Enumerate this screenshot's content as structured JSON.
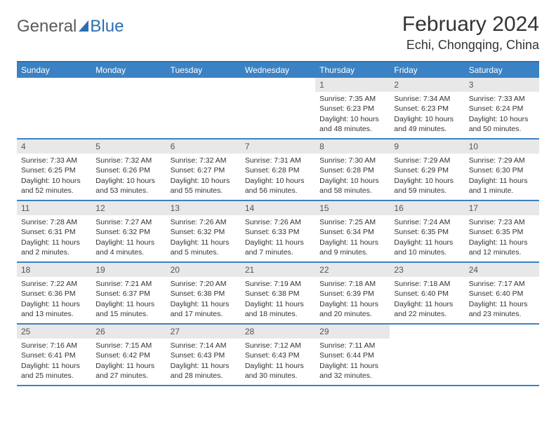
{
  "brand": {
    "general": "General",
    "blue": "Blue"
  },
  "title": "February 2024",
  "location": "Echi, Chongqing, China",
  "day_names": [
    "Sunday",
    "Monday",
    "Tuesday",
    "Wednesday",
    "Thursday",
    "Friday",
    "Saturday"
  ],
  "colors": {
    "header_bg": "#3b82c4",
    "header_text": "#ffffff",
    "row_border": "#3b82c4",
    "daynum_bg": "#e8e8e8",
    "text": "#333333",
    "brand_gray": "#5a5a5a",
    "brand_blue": "#2c6fb2"
  },
  "typography": {
    "title_fontsize": 30,
    "location_fontsize": 18,
    "dayname_fontsize": 12,
    "cell_fontsize": 10.5
  },
  "weeks": [
    [
      {
        "n": "",
        "sr": "",
        "ss": "",
        "dl": ""
      },
      {
        "n": "",
        "sr": "",
        "ss": "",
        "dl": ""
      },
      {
        "n": "",
        "sr": "",
        "ss": "",
        "dl": ""
      },
      {
        "n": "",
        "sr": "",
        "ss": "",
        "dl": ""
      },
      {
        "n": "1",
        "sr": "Sunrise: 7:35 AM",
        "ss": "Sunset: 6:23 PM",
        "dl": "Daylight: 10 hours and 48 minutes."
      },
      {
        "n": "2",
        "sr": "Sunrise: 7:34 AM",
        "ss": "Sunset: 6:23 PM",
        "dl": "Daylight: 10 hours and 49 minutes."
      },
      {
        "n": "3",
        "sr": "Sunrise: 7:33 AM",
        "ss": "Sunset: 6:24 PM",
        "dl": "Daylight: 10 hours and 50 minutes."
      }
    ],
    [
      {
        "n": "4",
        "sr": "Sunrise: 7:33 AM",
        "ss": "Sunset: 6:25 PM",
        "dl": "Daylight: 10 hours and 52 minutes."
      },
      {
        "n": "5",
        "sr": "Sunrise: 7:32 AM",
        "ss": "Sunset: 6:26 PM",
        "dl": "Daylight: 10 hours and 53 minutes."
      },
      {
        "n": "6",
        "sr": "Sunrise: 7:32 AM",
        "ss": "Sunset: 6:27 PM",
        "dl": "Daylight: 10 hours and 55 minutes."
      },
      {
        "n": "7",
        "sr": "Sunrise: 7:31 AM",
        "ss": "Sunset: 6:28 PM",
        "dl": "Daylight: 10 hours and 56 minutes."
      },
      {
        "n": "8",
        "sr": "Sunrise: 7:30 AM",
        "ss": "Sunset: 6:28 PM",
        "dl": "Daylight: 10 hours and 58 minutes."
      },
      {
        "n": "9",
        "sr": "Sunrise: 7:29 AM",
        "ss": "Sunset: 6:29 PM",
        "dl": "Daylight: 10 hours and 59 minutes."
      },
      {
        "n": "10",
        "sr": "Sunrise: 7:29 AM",
        "ss": "Sunset: 6:30 PM",
        "dl": "Daylight: 11 hours and 1 minute."
      }
    ],
    [
      {
        "n": "11",
        "sr": "Sunrise: 7:28 AM",
        "ss": "Sunset: 6:31 PM",
        "dl": "Daylight: 11 hours and 2 minutes."
      },
      {
        "n": "12",
        "sr": "Sunrise: 7:27 AM",
        "ss": "Sunset: 6:32 PM",
        "dl": "Daylight: 11 hours and 4 minutes."
      },
      {
        "n": "13",
        "sr": "Sunrise: 7:26 AM",
        "ss": "Sunset: 6:32 PM",
        "dl": "Daylight: 11 hours and 5 minutes."
      },
      {
        "n": "14",
        "sr": "Sunrise: 7:26 AM",
        "ss": "Sunset: 6:33 PM",
        "dl": "Daylight: 11 hours and 7 minutes."
      },
      {
        "n": "15",
        "sr": "Sunrise: 7:25 AM",
        "ss": "Sunset: 6:34 PM",
        "dl": "Daylight: 11 hours and 9 minutes."
      },
      {
        "n": "16",
        "sr": "Sunrise: 7:24 AM",
        "ss": "Sunset: 6:35 PM",
        "dl": "Daylight: 11 hours and 10 minutes."
      },
      {
        "n": "17",
        "sr": "Sunrise: 7:23 AM",
        "ss": "Sunset: 6:35 PM",
        "dl": "Daylight: 11 hours and 12 minutes."
      }
    ],
    [
      {
        "n": "18",
        "sr": "Sunrise: 7:22 AM",
        "ss": "Sunset: 6:36 PM",
        "dl": "Daylight: 11 hours and 13 minutes."
      },
      {
        "n": "19",
        "sr": "Sunrise: 7:21 AM",
        "ss": "Sunset: 6:37 PM",
        "dl": "Daylight: 11 hours and 15 minutes."
      },
      {
        "n": "20",
        "sr": "Sunrise: 7:20 AM",
        "ss": "Sunset: 6:38 PM",
        "dl": "Daylight: 11 hours and 17 minutes."
      },
      {
        "n": "21",
        "sr": "Sunrise: 7:19 AM",
        "ss": "Sunset: 6:38 PM",
        "dl": "Daylight: 11 hours and 18 minutes."
      },
      {
        "n": "22",
        "sr": "Sunrise: 7:18 AM",
        "ss": "Sunset: 6:39 PM",
        "dl": "Daylight: 11 hours and 20 minutes."
      },
      {
        "n": "23",
        "sr": "Sunrise: 7:18 AM",
        "ss": "Sunset: 6:40 PM",
        "dl": "Daylight: 11 hours and 22 minutes."
      },
      {
        "n": "24",
        "sr": "Sunrise: 7:17 AM",
        "ss": "Sunset: 6:40 PM",
        "dl": "Daylight: 11 hours and 23 minutes."
      }
    ],
    [
      {
        "n": "25",
        "sr": "Sunrise: 7:16 AM",
        "ss": "Sunset: 6:41 PM",
        "dl": "Daylight: 11 hours and 25 minutes."
      },
      {
        "n": "26",
        "sr": "Sunrise: 7:15 AM",
        "ss": "Sunset: 6:42 PM",
        "dl": "Daylight: 11 hours and 27 minutes."
      },
      {
        "n": "27",
        "sr": "Sunrise: 7:14 AM",
        "ss": "Sunset: 6:43 PM",
        "dl": "Daylight: 11 hours and 28 minutes."
      },
      {
        "n": "28",
        "sr": "Sunrise: 7:12 AM",
        "ss": "Sunset: 6:43 PM",
        "dl": "Daylight: 11 hours and 30 minutes."
      },
      {
        "n": "29",
        "sr": "Sunrise: 7:11 AM",
        "ss": "Sunset: 6:44 PM",
        "dl": "Daylight: 11 hours and 32 minutes."
      },
      {
        "n": "",
        "sr": "",
        "ss": "",
        "dl": ""
      },
      {
        "n": "",
        "sr": "",
        "ss": "",
        "dl": ""
      }
    ]
  ]
}
